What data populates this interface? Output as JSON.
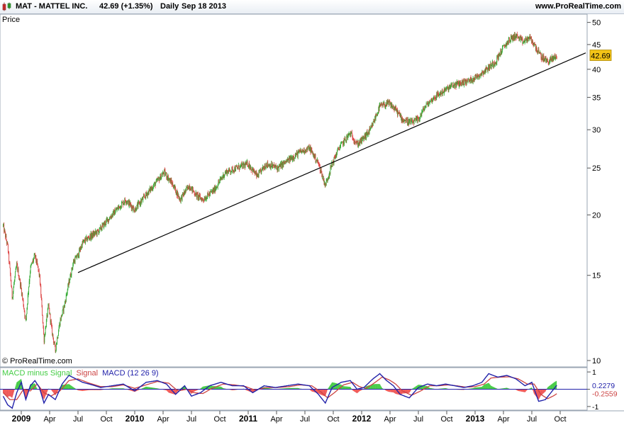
{
  "header": {
    "title": "MAT - MATTEL INC.",
    "quote": "42.69 (+1.35%)",
    "period": "Daily",
    "date": "Sep 18 2013",
    "brand": "www.ProRealTime.com"
  },
  "colors": {
    "up": "#33aa33",
    "down": "#dd4444",
    "macd_line": "#2222aa",
    "signal_line": "#cc4444",
    "hist_up": "#44cc44",
    "hist_down": "#ee5555",
    "price_tag": "#f3c417",
    "trendline": "#000000"
  },
  "chart_data": [
    {
      "type": "candlestick",
      "title": "Price",
      "watermark": "© ProRealTime.com",
      "y_scale": "log",
      "ylim": [
        9.7,
        52
      ],
      "y_ticks": [
        10,
        15,
        20,
        25,
        30,
        35,
        40,
        45,
        50
      ],
      "last_price": "42.69",
      "x_ticks": [
        {
          "t": 0.0,
          "label": "2009",
          "bold": true
        },
        {
          "t": 0.25,
          "label": "Apr",
          "bold": false
        },
        {
          "t": 0.5,
          "label": "Jul",
          "bold": false
        },
        {
          "t": 0.75,
          "label": "Oct",
          "bold": false
        },
        {
          "t": 1.0,
          "label": "2010",
          "bold": true
        },
        {
          "t": 1.25,
          "label": "Apr",
          "bold": false
        },
        {
          "t": 1.5,
          "label": "Jul",
          "bold": false
        },
        {
          "t": 1.75,
          "label": "Oct",
          "bold": false
        },
        {
          "t": 2.0,
          "label": "2011",
          "bold": true
        },
        {
          "t": 2.25,
          "label": "Apr",
          "bold": false
        },
        {
          "t": 2.5,
          "label": "Jul",
          "bold": false
        },
        {
          "t": 2.75,
          "label": "Oct",
          "bold": false
        },
        {
          "t": 3.0,
          "label": "2012",
          "bold": true
        },
        {
          "t": 3.25,
          "label": "Apr",
          "bold": false
        },
        {
          "t": 3.5,
          "label": "Jul",
          "bold": false
        },
        {
          "t": 3.75,
          "label": "Oct",
          "bold": false
        },
        {
          "t": 4.0,
          "label": "2013",
          "bold": true
        },
        {
          "t": 4.25,
          "label": "Apr",
          "bold": false
        },
        {
          "t": 4.5,
          "label": "Jul",
          "bold": false
        },
        {
          "t": 4.75,
          "label": "Oct",
          "bold": false
        }
      ],
      "price_path": [
        [
          -0.16,
          19.0
        ],
        [
          -0.12,
          17.2
        ],
        [
          -0.08,
          13.5
        ],
        [
          -0.04,
          15.8
        ],
        [
          0.0,
          14.0
        ],
        [
          0.04,
          12.0
        ],
        [
          0.08,
          15.5
        ],
        [
          0.12,
          16.5
        ],
        [
          0.16,
          15.0
        ],
        [
          0.2,
          11.0
        ],
        [
          0.24,
          13.0
        ],
        [
          0.27,
          11.5
        ],
        [
          0.3,
          10.5
        ],
        [
          0.34,
          12.0
        ],
        [
          0.38,
          13.0
        ],
        [
          0.42,
          14.5
        ],
        [
          0.46,
          16.0
        ],
        [
          0.5,
          16.5
        ],
        [
          0.54,
          17.5
        ],
        [
          0.6,
          18.0
        ],
        [
          0.68,
          18.5
        ],
        [
          0.76,
          19.5
        ],
        [
          0.84,
          20.5
        ],
        [
          0.92,
          21.5
        ],
        [
          1.0,
          20.5
        ],
        [
          1.1,
          22.0
        ],
        [
          1.2,
          23.5
        ],
        [
          1.26,
          24.5
        ],
        [
          1.34,
          23.0
        ],
        [
          1.4,
          21.5
        ],
        [
          1.48,
          23.0
        ],
        [
          1.54,
          22.0
        ],
        [
          1.6,
          21.5
        ],
        [
          1.7,
          22.5
        ],
        [
          1.8,
          24.5
        ],
        [
          1.9,
          25.0
        ],
        [
          2.0,
          25.5
        ],
        [
          2.08,
          24.0
        ],
        [
          2.16,
          25.5
        ],
        [
          2.26,
          25.0
        ],
        [
          2.36,
          26.0
        ],
        [
          2.46,
          27.0
        ],
        [
          2.54,
          27.5
        ],
        [
          2.62,
          25.5
        ],
        [
          2.68,
          23.0
        ],
        [
          2.74,
          25.5
        ],
        [
          2.8,
          27.5
        ],
        [
          2.9,
          29.5
        ],
        [
          2.96,
          28.0
        ],
        [
          3.0,
          28.5
        ],
        [
          3.08,
          30.0
        ],
        [
          3.16,
          33.5
        ],
        [
          3.24,
          34.0
        ],
        [
          3.3,
          33.0
        ],
        [
          3.36,
          31.5
        ],
        [
          3.44,
          31.0
        ],
        [
          3.5,
          31.5
        ],
        [
          3.56,
          33.5
        ],
        [
          3.64,
          35.0
        ],
        [
          3.72,
          36.0
        ],
        [
          3.8,
          37.0
        ],
        [
          3.88,
          37.5
        ],
        [
          3.96,
          38.0
        ],
        [
          4.04,
          39.0
        ],
        [
          4.1,
          40.0
        ],
        [
          4.18,
          41.5
        ],
        [
          4.24,
          44.0
        ],
        [
          4.3,
          46.0
        ],
        [
          4.36,
          47.0
        ],
        [
          4.42,
          45.5
        ],
        [
          4.48,
          46.5
        ],
        [
          4.52,
          45.0
        ],
        [
          4.58,
          42.5
        ],
        [
          4.64,
          41.5
        ],
        [
          4.68,
          42.0
        ],
        [
          4.72,
          42.69
        ]
      ],
      "trendline": {
        "start": [
          0.5,
          15.2
        ],
        "end": [
          5.0,
          43.5
        ]
      }
    },
    {
      "type": "line",
      "title_parts": {
        "hist": "MACD minus Signal",
        "signal": "Signal",
        "macd": "MACD (12 26 9)"
      },
      "ylim": [
        -1.25,
        1.25
      ],
      "y_ticks": [
        1,
        0,
        -1
      ],
      "last_macd": "0.2279",
      "last_signal": "-0.2559",
      "macd_path": [
        [
          -0.16,
          -0.4
        ],
        [
          -0.12,
          -0.9
        ],
        [
          -0.08,
          -1.1
        ],
        [
          -0.04,
          -0.2
        ],
        [
          0.0,
          0.4
        ],
        [
          0.04,
          -0.6
        ],
        [
          0.08,
          0.2
        ],
        [
          0.12,
          0.5
        ],
        [
          0.16,
          0.1
        ],
        [
          0.2,
          -0.8
        ],
        [
          0.24,
          -0.3
        ],
        [
          0.3,
          -0.6
        ],
        [
          0.36,
          0.3
        ],
        [
          0.42,
          0.8
        ],
        [
          0.48,
          0.6
        ],
        [
          0.54,
          0.4
        ],
        [
          0.6,
          0.3
        ],
        [
          0.7,
          0.1
        ],
        [
          0.8,
          0.2
        ],
        [
          0.9,
          0.3
        ],
        [
          1.0,
          -0.1
        ],
        [
          1.1,
          0.4
        ],
        [
          1.2,
          0.5
        ],
        [
          1.28,
          0.3
        ],
        [
          1.36,
          -0.3
        ],
        [
          1.44,
          0.2
        ],
        [
          1.5,
          -0.4
        ],
        [
          1.58,
          -0.2
        ],
        [
          1.66,
          0.2
        ],
        [
          1.76,
          0.4
        ],
        [
          1.86,
          0.2
        ],
        [
          1.96,
          0.2
        ],
        [
          2.04,
          -0.2
        ],
        [
          2.14,
          0.2
        ],
        [
          2.24,
          0.1
        ],
        [
          2.34,
          0.2
        ],
        [
          2.44,
          0.3
        ],
        [
          2.54,
          0.2
        ],
        [
          2.62,
          -0.3
        ],
        [
          2.68,
          -0.8
        ],
        [
          2.74,
          0.1
        ],
        [
          2.82,
          0.4
        ],
        [
          2.9,
          0.5
        ],
        [
          2.96,
          0.0
        ],
        [
          3.02,
          0.1
        ],
        [
          3.1,
          0.6
        ],
        [
          3.16,
          0.9
        ],
        [
          3.22,
          0.5
        ],
        [
          3.28,
          0.2
        ],
        [
          3.34,
          -0.3
        ],
        [
          3.42,
          -0.5
        ],
        [
          3.5,
          0.1
        ],
        [
          3.58,
          0.3
        ],
        [
          3.66,
          0.2
        ],
        [
          3.74,
          0.3
        ],
        [
          3.82,
          0.2
        ],
        [
          3.9,
          0.1
        ],
        [
          3.98,
          0.2
        ],
        [
          4.06,
          0.4
        ],
        [
          4.12,
          0.9
        ],
        [
          4.2,
          0.7
        ],
        [
          4.28,
          0.8
        ],
        [
          4.36,
          0.6
        ],
        [
          4.44,
          0.2
        ],
        [
          4.5,
          0.4
        ],
        [
          4.56,
          -0.7
        ],
        [
          4.62,
          -0.6
        ],
        [
          4.68,
          -0.1
        ],
        [
          4.72,
          0.23
        ]
      ],
      "signal_path": [
        [
          -0.16,
          -0.2
        ],
        [
          -0.1,
          -0.6
        ],
        [
          -0.04,
          -0.6
        ],
        [
          0.02,
          0.0
        ],
        [
          0.08,
          -0.1
        ],
        [
          0.14,
          0.3
        ],
        [
          0.2,
          -0.2
        ],
        [
          0.26,
          -0.4
        ],
        [
          0.34,
          -0.1
        ],
        [
          0.42,
          0.5
        ],
        [
          0.5,
          0.6
        ],
        [
          0.6,
          0.35
        ],
        [
          0.7,
          0.15
        ],
        [
          0.8,
          0.15
        ],
        [
          0.9,
          0.25
        ],
        [
          1.0,
          0.05
        ],
        [
          1.1,
          0.25
        ],
        [
          1.2,
          0.45
        ],
        [
          1.3,
          0.35
        ],
        [
          1.38,
          -0.1
        ],
        [
          1.46,
          0.0
        ],
        [
          1.52,
          -0.2
        ],
        [
          1.6,
          -0.25
        ],
        [
          1.68,
          0.05
        ],
        [
          1.78,
          0.3
        ],
        [
          1.88,
          0.25
        ],
        [
          1.98,
          0.15
        ],
        [
          2.06,
          -0.05
        ],
        [
          2.16,
          0.1
        ],
        [
          2.26,
          0.1
        ],
        [
          2.36,
          0.15
        ],
        [
          2.46,
          0.25
        ],
        [
          2.56,
          0.2
        ],
        [
          2.64,
          -0.15
        ],
        [
          2.7,
          -0.5
        ],
        [
          2.76,
          -0.2
        ],
        [
          2.84,
          0.25
        ],
        [
          2.92,
          0.4
        ],
        [
          2.98,
          0.15
        ],
        [
          3.04,
          0.05
        ],
        [
          3.12,
          0.4
        ],
        [
          3.18,
          0.7
        ],
        [
          3.24,
          0.55
        ],
        [
          3.3,
          0.3
        ],
        [
          3.36,
          -0.1
        ],
        [
          3.44,
          -0.35
        ],
        [
          3.52,
          -0.1
        ],
        [
          3.6,
          0.2
        ],
        [
          3.68,
          0.2
        ],
        [
          3.76,
          0.25
        ],
        [
          3.84,
          0.2
        ],
        [
          3.92,
          0.12
        ],
        [
          4.0,
          0.15
        ],
        [
          4.08,
          0.3
        ],
        [
          4.14,
          0.65
        ],
        [
          4.22,
          0.7
        ],
        [
          4.3,
          0.72
        ],
        [
          4.38,
          0.6
        ],
        [
          4.46,
          0.3
        ],
        [
          4.52,
          0.3
        ],
        [
          4.58,
          -0.3
        ],
        [
          4.64,
          -0.55
        ],
        [
          4.7,
          -0.35
        ],
        [
          4.72,
          -0.26
        ]
      ]
    }
  ]
}
